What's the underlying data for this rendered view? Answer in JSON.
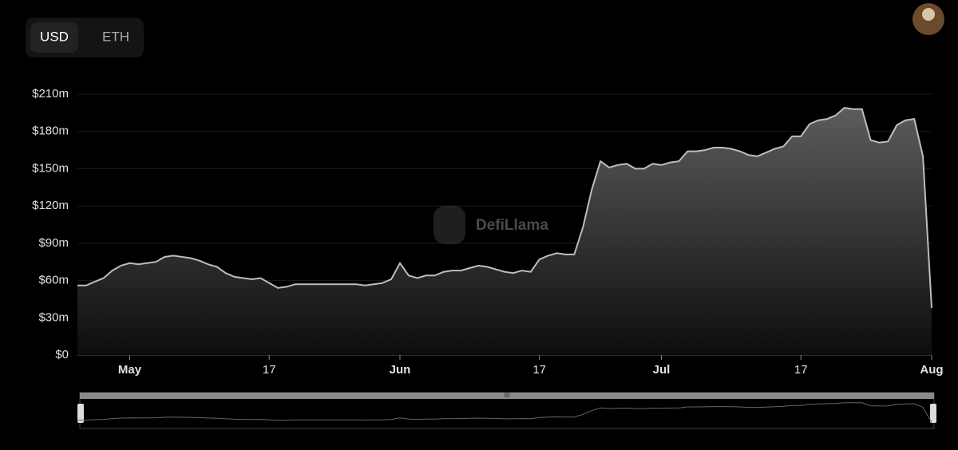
{
  "controls": {
    "options": [
      "USD",
      "ETH"
    ],
    "active": "USD"
  },
  "watermark": "DefiLlama",
  "chart_data": {
    "type": "area",
    "color": "#bdbdbd",
    "x": [
      "04-25",
      "04-26",
      "04-27",
      "04-28",
      "04-29",
      "04-30",
      "05-01",
      "05-02",
      "05-03",
      "05-04",
      "05-05",
      "05-06",
      "05-07",
      "05-08",
      "05-09",
      "05-10",
      "05-11",
      "05-12",
      "05-13",
      "05-14",
      "05-15",
      "05-16",
      "05-17",
      "05-18",
      "05-19",
      "05-20",
      "05-21",
      "05-22",
      "05-23",
      "05-24",
      "05-25",
      "05-26",
      "05-27",
      "05-28",
      "05-29",
      "05-30",
      "05-31",
      "06-01",
      "06-02",
      "06-03",
      "06-04",
      "06-05",
      "06-06",
      "06-07",
      "06-08",
      "06-09",
      "06-10",
      "06-11",
      "06-12",
      "06-13",
      "06-14",
      "06-15",
      "06-16",
      "06-17",
      "06-18",
      "06-19",
      "06-20",
      "06-21",
      "06-22",
      "06-23",
      "06-24",
      "06-25",
      "06-26",
      "06-27",
      "06-28",
      "06-29",
      "06-30",
      "07-01",
      "07-02",
      "07-03",
      "07-04",
      "07-05",
      "07-06",
      "07-07",
      "07-08",
      "07-09",
      "07-10",
      "07-11",
      "07-12",
      "07-13",
      "07-14",
      "07-15",
      "07-16",
      "07-17",
      "07-18",
      "07-19",
      "07-20",
      "07-21",
      "07-22",
      "07-23",
      "07-24",
      "07-25",
      "07-26",
      "07-27",
      "07-28",
      "07-29",
      "07-30",
      "07-31",
      "08-01"
    ],
    "values": [
      56,
      56,
      59,
      62,
      68,
      72,
      74,
      73,
      74,
      75,
      79,
      80,
      79,
      78,
      76,
      73,
      71,
      66,
      63,
      62,
      61,
      62,
      58,
      54,
      55,
      57,
      57,
      57,
      57,
      57,
      57,
      57,
      57,
      56,
      57,
      58,
      61,
      74,
      64,
      62,
      64,
      64,
      67,
      68,
      68,
      70,
      72,
      71,
      69,
      67,
      66,
      68,
      67,
      77,
      80,
      82,
      81,
      81,
      103,
      133,
      156,
      151,
      153,
      154,
      150,
      150,
      154,
      153,
      155,
      156,
      164,
      164,
      165,
      167,
      167,
      166,
      164,
      161,
      160,
      163,
      166,
      168,
      176,
      176,
      186,
      189,
      190,
      193,
      199,
      198,
      198,
      173,
      171,
      172,
      185,
      189,
      190,
      160,
      38
    ],
    "xlim": [
      "04-25",
      "08-01"
    ],
    "xticks": [
      {
        "value": "05-01",
        "label": "May"
      },
      {
        "value": "05-17",
        "label": "17"
      },
      {
        "value": "06-01",
        "label": "Jun"
      },
      {
        "value": "06-17",
        "label": "17"
      },
      {
        "value": "07-01",
        "label": "Jul"
      },
      {
        "value": "07-17",
        "label": "17"
      },
      {
        "value": "08-01",
        "label": "Aug"
      }
    ],
    "ylim": [
      0,
      210
    ],
    "yticks": [
      {
        "value": 0,
        "label": "$0"
      },
      {
        "value": 30,
        "label": "$30m"
      },
      {
        "value": 60,
        "label": "$60m"
      },
      {
        "value": 90,
        "label": "$90m"
      },
      {
        "value": 120,
        "label": "$120m"
      },
      {
        "value": 150,
        "label": "$150m"
      },
      {
        "value": 180,
        "label": "$180m"
      },
      {
        "value": 210,
        "label": "$210m"
      }
    ],
    "grid": true
  }
}
